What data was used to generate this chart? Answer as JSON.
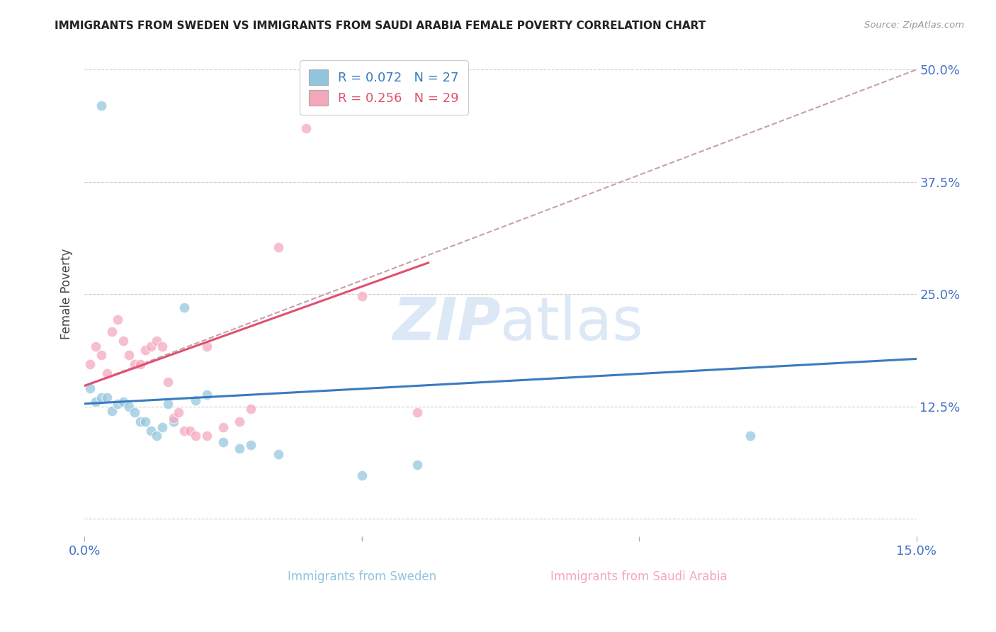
{
  "title": "IMMIGRANTS FROM SWEDEN VS IMMIGRANTS FROM SAUDI ARABIA FEMALE POVERTY CORRELATION CHART",
  "source": "Source: ZipAtlas.com",
  "ylabel": "Female Poverty",
  "xlabel_left_label": "Immigrants from Sweden",
  "xlabel_right_label": "Immigrants from Saudi Arabia",
  "xlim": [
    0.0,
    0.15
  ],
  "ylim": [
    -0.02,
    0.52
  ],
  "yticks": [
    0.0,
    0.125,
    0.25,
    0.375,
    0.5
  ],
  "ytick_labels_right": [
    "",
    "12.5%",
    "25.0%",
    "37.5%",
    "50.0%"
  ],
  "xticks": [
    0.0,
    0.05,
    0.1,
    0.15
  ],
  "xtick_labels": [
    "0.0%",
    "",
    "",
    "15.0%"
  ],
  "legend_r1": "R = 0.072",
  "legend_n1": "N = 27",
  "legend_r2": "R = 0.256",
  "legend_n2": "N = 29",
  "blue_color": "#92c5de",
  "pink_color": "#f4a6bb",
  "line_blue_color": "#3a7bbf",
  "line_pink_color": "#e05070",
  "dashed_line_color": "#c8a0b0",
  "watermark_text": "ZIPatlas",
  "watermark_color": "#dce8f5",
  "blue_scatter_x": [
    0.001,
    0.002,
    0.003,
    0.004,
    0.005,
    0.006,
    0.007,
    0.008,
    0.009,
    0.01,
    0.011,
    0.012,
    0.013,
    0.014,
    0.015,
    0.016,
    0.018,
    0.02,
    0.022,
    0.025,
    0.028,
    0.03,
    0.035,
    0.05,
    0.06,
    0.12,
    0.003
  ],
  "blue_scatter_y": [
    0.145,
    0.13,
    0.135,
    0.135,
    0.12,
    0.128,
    0.13,
    0.125,
    0.118,
    0.108,
    0.108,
    0.098,
    0.092,
    0.102,
    0.128,
    0.108,
    0.235,
    0.132,
    0.138,
    0.085,
    0.078,
    0.082,
    0.072,
    0.048,
    0.06,
    0.092,
    0.46
  ],
  "pink_scatter_x": [
    0.001,
    0.002,
    0.003,
    0.004,
    0.005,
    0.006,
    0.007,
    0.008,
    0.009,
    0.01,
    0.011,
    0.012,
    0.013,
    0.014,
    0.015,
    0.016,
    0.017,
    0.018,
    0.019,
    0.02,
    0.022,
    0.025,
    0.028,
    0.03,
    0.035,
    0.04,
    0.05,
    0.06,
    0.022
  ],
  "pink_scatter_y": [
    0.172,
    0.192,
    0.182,
    0.162,
    0.208,
    0.222,
    0.198,
    0.182,
    0.172,
    0.172,
    0.188,
    0.192,
    0.198,
    0.192,
    0.152,
    0.112,
    0.118,
    0.098,
    0.098,
    0.092,
    0.092,
    0.102,
    0.108,
    0.122,
    0.302,
    0.435,
    0.248,
    0.118,
    0.192
  ],
  "blue_line_x": [
    0.0,
    0.15
  ],
  "blue_line_y": [
    0.128,
    0.178
  ],
  "pink_line_x": [
    0.0,
    0.062
  ],
  "pink_line_y": [
    0.148,
    0.285
  ],
  "dashed_line_x": [
    0.0,
    0.15
  ],
  "dashed_line_y": [
    0.148,
    0.5
  ],
  "background_color": "#ffffff",
  "grid_color": "#d0d0d0",
  "title_color": "#222222",
  "tick_color": "#4472c4",
  "marker_size": 110,
  "marker_alpha": 0.72
}
